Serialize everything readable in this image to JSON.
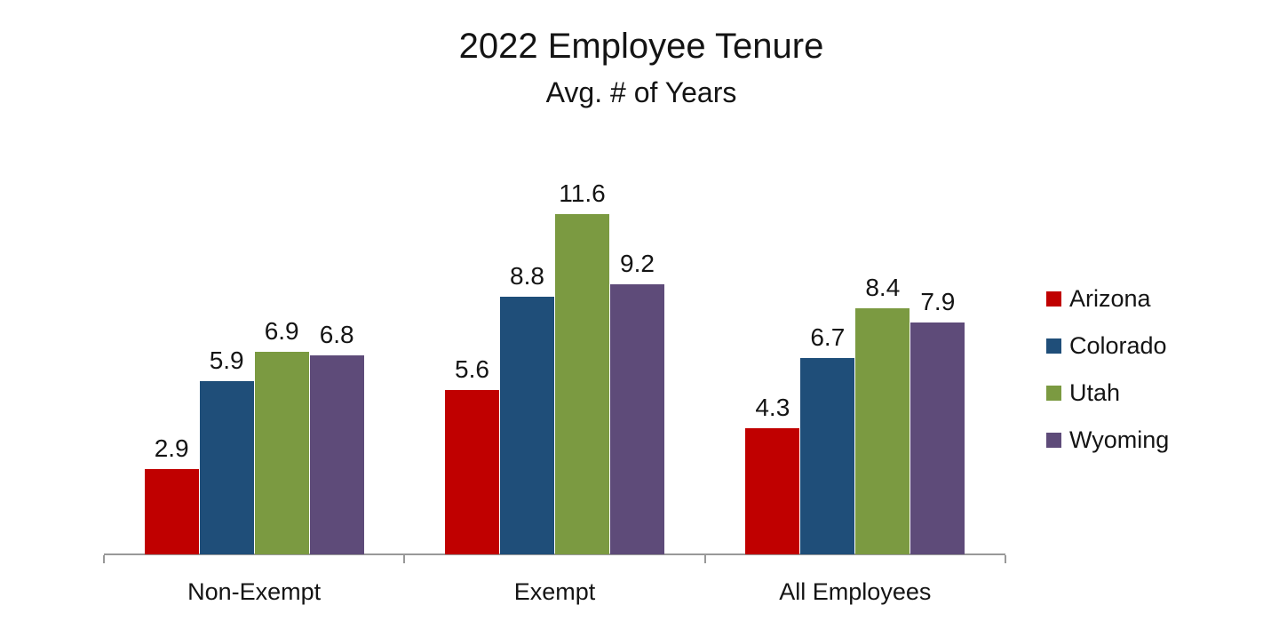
{
  "chart_data": {
    "type": "bar",
    "title": "2022 Employee Tenure",
    "subtitle": "Avg. # of Years",
    "categories": [
      "Non-Exempt",
      "Exempt",
      "All Employees"
    ],
    "series": [
      {
        "name": "Arizona",
        "color": "#C00000",
        "values": [
          2.9,
          5.6,
          4.3
        ]
      },
      {
        "name": "Colorado",
        "color": "#1F4E79",
        "values": [
          5.9,
          8.8,
          6.7
        ]
      },
      {
        "name": "Utah",
        "color": "#7B9A41",
        "values": [
          6.9,
          11.6,
          8.4
        ]
      },
      {
        "name": "Wyoming",
        "color": "#5E4B79",
        "values": [
          6.8,
          9.2,
          7.9
        ]
      }
    ],
    "ylim": [
      0,
      12
    ],
    "y_axis_visible": false,
    "grid": false,
    "data_labels": true,
    "legend_position": "right",
    "axis_color": "#999999",
    "text_color": "#141414",
    "background_color": "#FFFFFF"
  }
}
